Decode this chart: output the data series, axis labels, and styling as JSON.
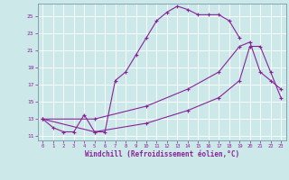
{
  "xlabel": "Windchill (Refroidissement éolien,°C)",
  "background_color": "#cce8e8",
  "grid_color": "#aacccc",
  "line_color": "#882299",
  "x_ticks": [
    0,
    1,
    2,
    3,
    4,
    5,
    6,
    7,
    8,
    9,
    10,
    11,
    12,
    13,
    14,
    15,
    16,
    17,
    18,
    19,
    20,
    21,
    22,
    23
  ],
  "y_ticks": [
    11,
    13,
    15,
    17,
    19,
    21,
    23,
    25
  ],
  "xlim": [
    -0.5,
    23.5
  ],
  "ylim": [
    10.5,
    26.5
  ],
  "line1_x": [
    0,
    1,
    2,
    3,
    4,
    5,
    6,
    7,
    8,
    9,
    10,
    11,
    12,
    13,
    14,
    15,
    16,
    17,
    18,
    19
  ],
  "line1_y": [
    13,
    12,
    11.5,
    11.5,
    13.5,
    11.5,
    11.5,
    17.5,
    18.5,
    20.5,
    22.5,
    24.5,
    25.5,
    26.2,
    25.8,
    25.2,
    25.2,
    25.2,
    24.5,
    22.5
  ],
  "line2_x": [
    0,
    5,
    10,
    14,
    17,
    19,
    20,
    21,
    22,
    23
  ],
  "line2_y": [
    13,
    13,
    14.5,
    16.5,
    18.5,
    21.5,
    22.0,
    18.5,
    17.5,
    16.5
  ],
  "line3_x": [
    0,
    5,
    10,
    14,
    17,
    19,
    20,
    21,
    22,
    23
  ],
  "line3_y": [
    13,
    11.5,
    12.5,
    14.0,
    15.5,
    17.5,
    21.5,
    21.5,
    18.5,
    15.5
  ]
}
